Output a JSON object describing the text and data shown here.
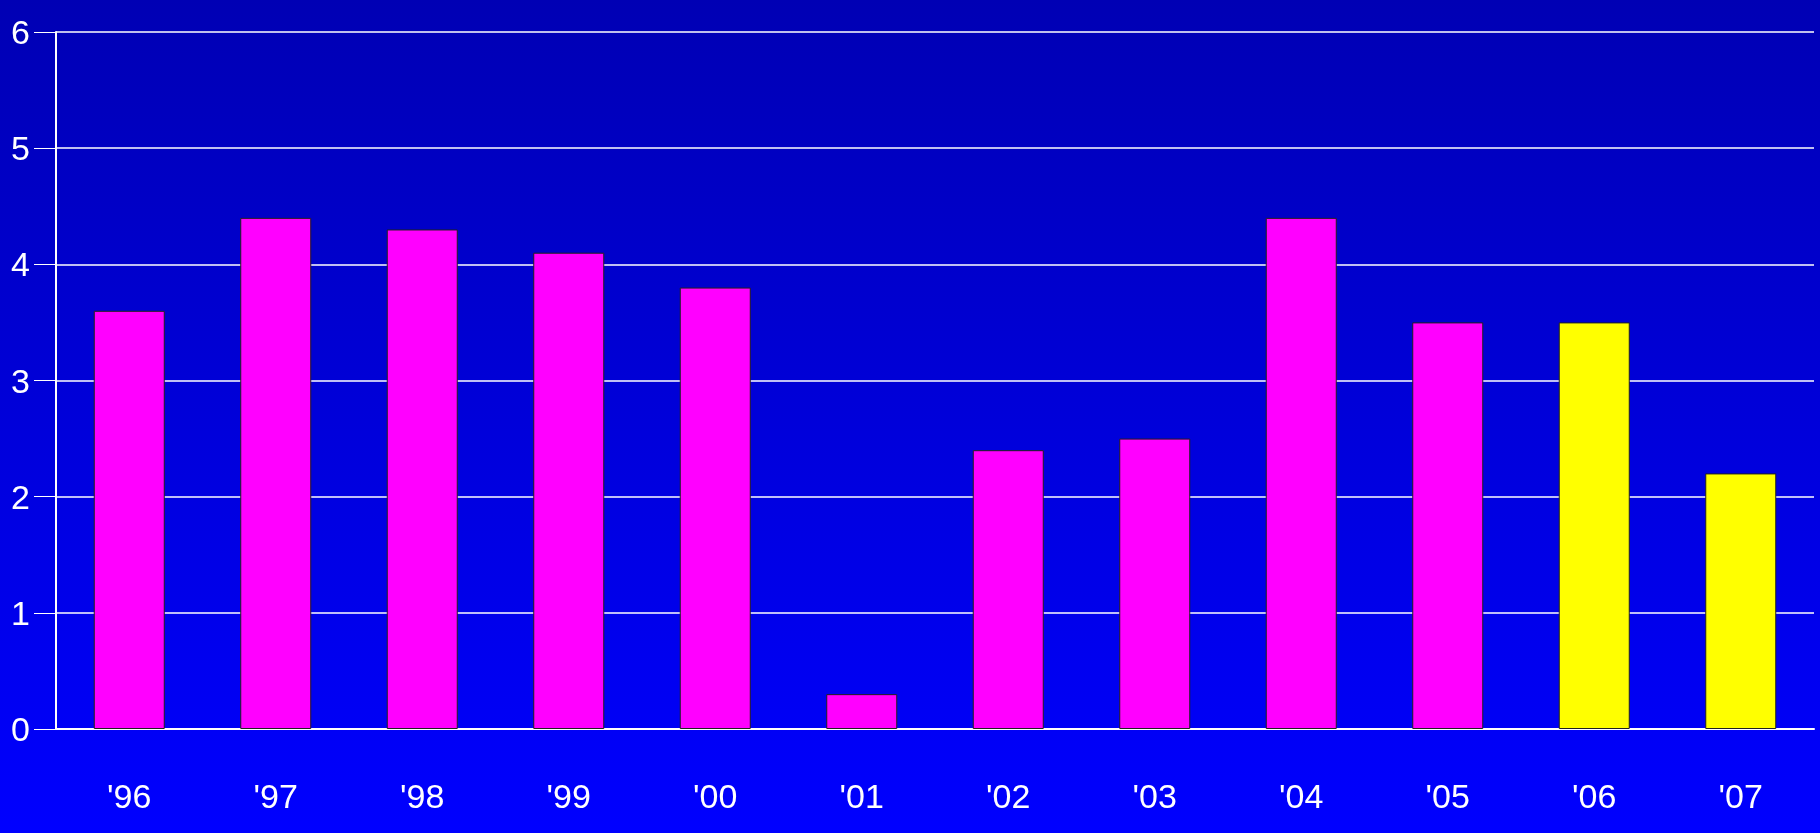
{
  "chart_data": {
    "type": "bar",
    "categories": [
      "'96",
      "'97",
      "'98",
      "'99",
      "'00",
      "'01",
      "'02",
      "'03",
      "'04",
      "'05",
      "'06",
      "'07"
    ],
    "values": [
      3.6,
      4.4,
      4.3,
      4.1,
      3.8,
      0.3,
      2.4,
      2.5,
      4.4,
      3.5,
      3.5,
      2.2
    ],
    "colors": [
      "#ff00ff",
      "#ff00ff",
      "#ff00ff",
      "#ff00ff",
      "#ff00ff",
      "#ff00ff",
      "#ff00ff",
      "#ff00ff",
      "#ff00ff",
      "#ff00ff",
      "#ffff00",
      "#ffff00"
    ],
    "ylim": [
      0,
      6
    ],
    "yticks": [
      0,
      1,
      2,
      3,
      4,
      5,
      6
    ],
    "grid": "y"
  }
}
